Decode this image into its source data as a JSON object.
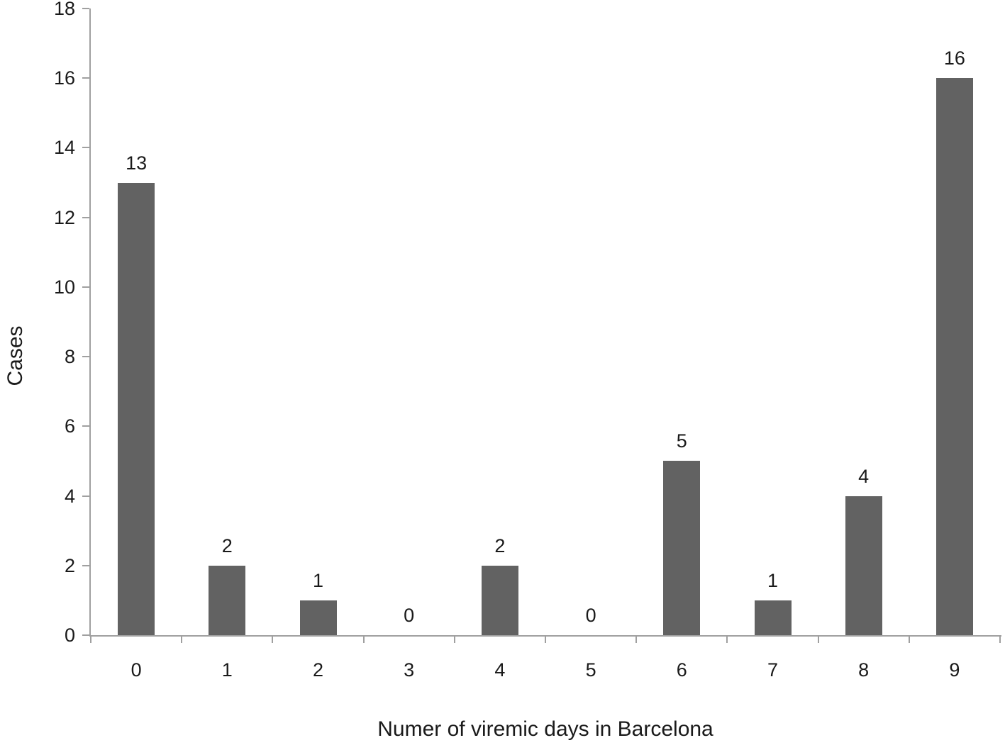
{
  "chart_data": {
    "type": "bar",
    "title": "",
    "xlabel": "Numer of viremic days in Barcelona",
    "ylabel": "Cases",
    "categories": [
      "0",
      "1",
      "2",
      "3",
      "4",
      "5",
      "6",
      "7",
      "8",
      "9"
    ],
    "values": [
      13,
      2,
      1,
      0,
      2,
      0,
      5,
      1,
      4,
      16
    ],
    "data_labels": [
      "13",
      "2",
      "1",
      "0",
      "2",
      "0",
      "5",
      "1",
      "4",
      "16"
    ],
    "ylim": [
      0,
      18
    ],
    "ytick_step": 2,
    "ytick_labels": [
      "0",
      "2",
      "4",
      "6",
      "8",
      "10",
      "12",
      "14",
      "16",
      "18"
    ],
    "grid": false,
    "legend_position": "none",
    "colors": {
      "bar": "#626262",
      "axis": "#a0a0a0",
      "text": "#1a1a1a",
      "background": "#ffffff"
    }
  }
}
